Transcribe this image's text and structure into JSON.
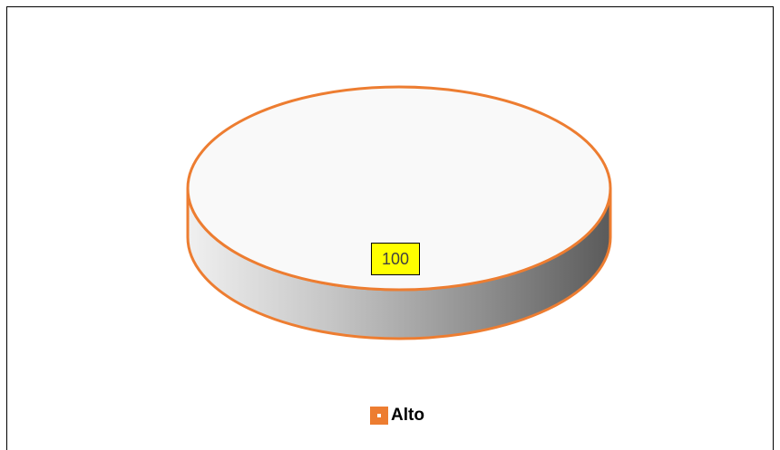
{
  "chart_data": {
    "type": "pie",
    "categories": [
      "Alto"
    ],
    "values": [
      100
    ],
    "data_labels": [
      "100"
    ],
    "title": "",
    "legend": {
      "entries": [
        "Alto"
      ],
      "placement": "bottom"
    },
    "style": {
      "three_d": true,
      "slice_border_color": "#ED7D31",
      "top_face_color": "#F9F9F9",
      "side_gradient": [
        "#F0F0F0",
        "#5A5A5A"
      ],
      "label_background": "#FFFF00",
      "legend_color": "#ED7D31"
    }
  }
}
